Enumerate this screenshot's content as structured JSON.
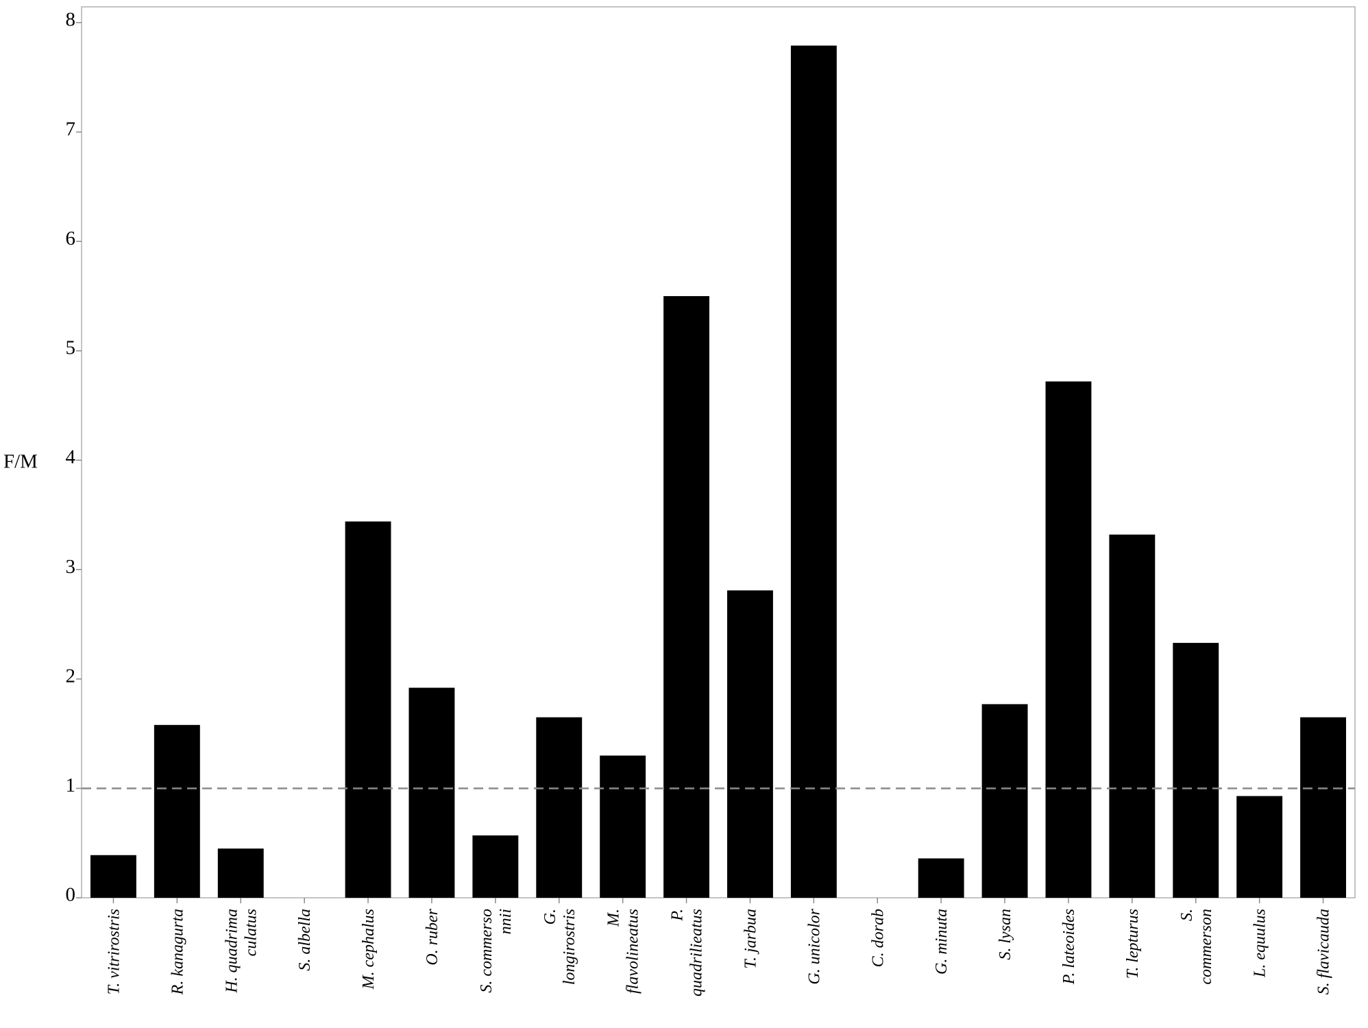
{
  "chart_data": {
    "type": "bar",
    "y_label": "F/M",
    "categories": [
      [
        "T. vitrirostris"
      ],
      [
        "R. kanagurta"
      ],
      [
        "H. quadrima",
        "culatus"
      ],
      [
        "S. albella"
      ],
      [
        "M. cephalus"
      ],
      [
        "O. ruber"
      ],
      [
        "S. commerso",
        "nnii"
      ],
      [
        "G.",
        "longirostris"
      ],
      [
        "M.",
        "flavolineatus"
      ],
      [
        "P.",
        "quadrilieatus"
      ],
      [
        "T. jarbua"
      ],
      [
        "G. unicolor"
      ],
      [
        "C. dorab"
      ],
      [
        "G. minuta"
      ],
      [
        "S. lysan"
      ],
      [
        "P. lateoides"
      ],
      [
        "T. lepturus"
      ],
      [
        "S.",
        "commerson"
      ],
      [
        "L. equulus"
      ],
      [
        "S. flavicauda"
      ]
    ],
    "values": [
      0.39,
      1.58,
      0.45,
      0,
      3.44,
      1.92,
      0.57,
      1.65,
      1.3,
      5.5,
      2.81,
      7.79,
      0,
      0.36,
      1.77,
      4.72,
      3.32,
      2.33,
      0.93,
      1.65
    ],
    "color": "#000000",
    "ylim": [
      0,
      8
    ],
    "yticks": [
      0,
      1,
      2,
      3,
      4,
      5,
      6,
      7,
      8
    ],
    "reference_line": 1
  }
}
